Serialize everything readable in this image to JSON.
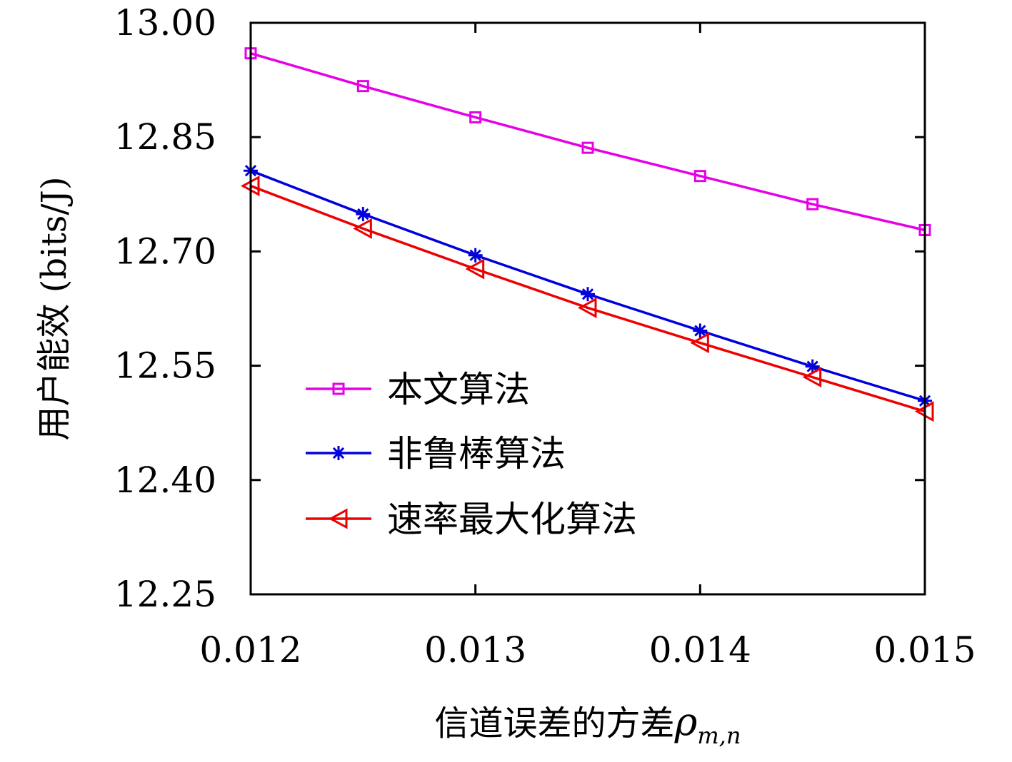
{
  "chart_data": {
    "type": "line",
    "title": "",
    "xlabel": "信道误差的方差",
    "xlabel_symbol": "ρ",
    "xlabel_subscript": "m,n",
    "ylabel": "用户能效 (bits/J)",
    "x": [
      0.012,
      0.0125,
      0.013,
      0.0135,
      0.014,
      0.0145,
      0.015
    ],
    "xlim": [
      0.012,
      0.015
    ],
    "ylim": [
      12.25,
      13.0
    ],
    "xticks": [
      "0.012",
      "0.013",
      "0.014",
      "0.015"
    ],
    "yticks": [
      "12.25",
      "12.40",
      "12.55",
      "12.70",
      "12.85",
      "13.00"
    ],
    "grid": false,
    "legend_position": "lower-left",
    "series": [
      {
        "name": "本文算法",
        "color": "#e600e6",
        "marker": "square",
        "values": [
          12.96,
          12.917,
          12.876,
          12.836,
          12.799,
          12.762,
          12.728
        ]
      },
      {
        "name": "非鲁棒算法",
        "color": "#0000dd",
        "marker": "asterisk",
        "values": [
          12.806,
          12.749,
          12.695,
          12.644,
          12.596,
          12.549,
          12.504
        ]
      },
      {
        "name": "速率最大化算法",
        "color": "#ee0000",
        "marker": "triangle-left",
        "values": [
          12.786,
          12.73,
          12.677,
          12.626,
          12.58,
          12.535,
          12.49
        ]
      }
    ]
  }
}
